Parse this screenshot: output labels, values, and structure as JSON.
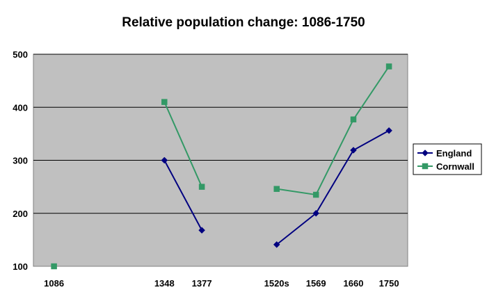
{
  "chart_data": {
    "type": "line",
    "title": "Relative population change: 1086-1750",
    "xlabel": "",
    "ylabel": "",
    "categories": [
      "1086",
      "1348",
      "1377",
      "1520s",
      "1569",
      "1660",
      "1750"
    ],
    "ylim": [
      100,
      500
    ],
    "yticks": [
      "100",
      "200",
      "300",
      "400",
      "500"
    ],
    "grid": "horizontal",
    "legend_position": "right",
    "plot_background": "#c0c0c0",
    "series": [
      {
        "name": "England",
        "color": "#000080",
        "marker": "diamond",
        "values": [
          null,
          300,
          168,
          141,
          200,
          319,
          356
        ]
      },
      {
        "name": "Cornwall",
        "color": "#339966",
        "marker": "square",
        "values": [
          100,
          410,
          250,
          246,
          235,
          377,
          477
        ]
      }
    ]
  }
}
